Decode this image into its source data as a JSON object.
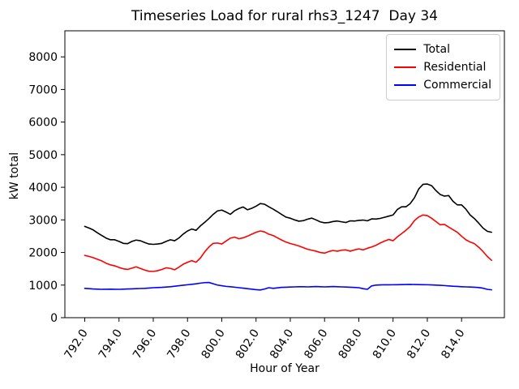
{
  "chart_data": {
    "type": "line",
    "title": "Timeseries Load for rural rhs3_1247  Day 34",
    "xlabel": "Hour of Year",
    "ylabel": "kW total",
    "xlim": [
      790.84,
      816.5
    ],
    "ylim": [
      0,
      8800
    ],
    "grid": false,
    "legend_position": "upper right",
    "x_ticks": [
      792,
      794,
      796,
      798,
      800,
      802,
      804,
      806,
      808,
      810,
      812,
      814
    ],
    "x_tick_labels": [
      "792.0",
      "794.0",
      "796.0",
      "798.0",
      "800.0",
      "802.0",
      "804.0",
      "806.0",
      "808.0",
      "810.0",
      "812.0",
      "814.0"
    ],
    "y_ticks": [
      0,
      1000,
      2000,
      3000,
      4000,
      5000,
      6000,
      7000,
      8000
    ],
    "y_tick_labels": [
      "0",
      "1000",
      "2000",
      "3000",
      "4000",
      "5000",
      "6000",
      "7000",
      "8000"
    ],
    "x_start": 792.0,
    "x_step": 0.25,
    "n_points": 96,
    "series": [
      {
        "name": "Total",
        "color": "#000000",
        "values": [
          2800,
          2750,
          2690,
          2600,
          2520,
          2440,
          2390,
          2390,
          2340,
          2280,
          2270,
          2340,
          2380,
          2360,
          2305,
          2260,
          2250,
          2260,
          2280,
          2340,
          2390,
          2360,
          2445,
          2565,
          2660,
          2720,
          2680,
          2815,
          2925,
          3040,
          3170,
          3275,
          3300,
          3240,
          3170,
          3280,
          3350,
          3395,
          3310,
          3355,
          3420,
          3500,
          3480,
          3400,
          3330,
          3250,
          3165,
          3085,
          3050,
          3000,
          2960,
          2975,
          3020,
          3055,
          3000,
          2940,
          2910,
          2920,
          2950,
          2965,
          2940,
          2920,
          2970,
          2965,
          2985,
          2995,
          2970,
          3030,
          3025,
          3045,
          3080,
          3115,
          3150,
          3320,
          3400,
          3400,
          3500,
          3680,
          3950,
          4090,
          4100,
          4050,
          3900,
          3780,
          3730,
          3745,
          3570,
          3460,
          3460,
          3330,
          3150,
          3040,
          2900,
          2750,
          2650,
          2620
        ]
      },
      {
        "name": "Residential",
        "color": "#ff0000",
        "values": [
          1910,
          1880,
          1840,
          1790,
          1740,
          1670,
          1620,
          1590,
          1540,
          1500,
          1480,
          1520,
          1560,
          1510,
          1460,
          1425,
          1420,
          1440,
          1480,
          1530,
          1510,
          1470,
          1550,
          1640,
          1700,
          1750,
          1700,
          1830,
          2015,
          2170,
          2280,
          2290,
          2260,
          2350,
          2440,
          2470,
          2420,
          2450,
          2500,
          2560,
          2620,
          2660,
          2630,
          2560,
          2520,
          2450,
          2380,
          2320,
          2275,
          2240,
          2200,
          2150,
          2100,
          2070,
          2040,
          2000,
          1980,
          2030,
          2060,
          2040,
          2070,
          2080,
          2040,
          2080,
          2110,
          2080,
          2130,
          2170,
          2220,
          2290,
          2350,
          2400,
          2360,
          2480,
          2580,
          2680,
          2800,
          2980,
          3090,
          3150,
          3130,
          3050,
          2950,
          2850,
          2860,
          2780,
          2700,
          2620,
          2500,
          2390,
          2320,
          2270,
          2160,
          2030,
          1880,
          1760
        ]
      },
      {
        "name": "Commercial",
        "color": "#0000ff",
        "values": [
          900,
          890,
          880,
          875,
          870,
          872,
          875,
          872,
          870,
          875,
          880,
          885,
          890,
          895,
          900,
          910,
          920,
          925,
          930,
          940,
          950,
          965,
          980,
          995,
          1010,
          1025,
          1040,
          1060,
          1075,
          1080,
          1040,
          1000,
          980,
          960,
          950,
          935,
          920,
          905,
          890,
          875,
          860,
          850,
          880,
          920,
          900,
          915,
          930,
          935,
          940,
          945,
          950,
          948,
          945,
          950,
          955,
          950,
          945,
          950,
          955,
          950,
          945,
          940,
          935,
          928,
          920,
          890,
          870,
          975,
          1000,
          1005,
          1010,
          1008,
          1010,
          1012,
          1015,
          1018,
          1020,
          1018,
          1015,
          1012,
          1010,
          1005,
          1000,
          992,
          985,
          975,
          965,
          958,
          950,
          945,
          940,
          935,
          925,
          905,
          870,
          855
        ]
      }
    ]
  }
}
